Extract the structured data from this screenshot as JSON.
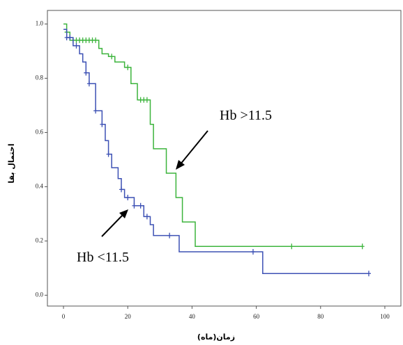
{
  "chart_data": {
    "type": "step",
    "x_label": "زمان(ماه)",
    "y_label": "احتمال بقا",
    "xlim": [
      -5,
      105
    ],
    "xticks": [
      0,
      20,
      40,
      60,
      80,
      100
    ],
    "ylim": [
      -0.04,
      1.05
    ],
    "yticks": [
      {
        "value": 0,
        "label": "0.0"
      },
      0.2,
      0.4,
      0.6,
      0.8,
      {
        "value": 1,
        "label": "1.0"
      }
    ],
    "series": [
      {
        "name": "Hb >11.5",
        "color": "#3cb43c",
        "x": [
          0,
          1,
          2,
          11,
          12,
          14,
          16,
          19,
          21,
          23,
          27,
          28,
          32,
          35,
          37,
          41,
          93
        ],
        "values": [
          1.0,
          0.97,
          0.94,
          0.91,
          0.89,
          0.88,
          0.86,
          0.84,
          0.78,
          0.72,
          0.63,
          0.54,
          0.45,
          0.36,
          0.27,
          0.18,
          0.18
        ],
        "censored_x": [
          1,
          3,
          4,
          5,
          6,
          7,
          8,
          9,
          10,
          15,
          20,
          24,
          25,
          26,
          71,
          93
        ]
      },
      {
        "name": "Hb <11.5",
        "color": "#3c50b4",
        "x": [
          0,
          1,
          3,
          5,
          6,
          7,
          8,
          10,
          12,
          13,
          14,
          15,
          17,
          18,
          19,
          22,
          25,
          27,
          28,
          36,
          62,
          95
        ],
        "values": [
          0.98,
          0.95,
          0.92,
          0.89,
          0.86,
          0.82,
          0.78,
          0.68,
          0.63,
          0.57,
          0.52,
          0.47,
          0.43,
          0.39,
          0.36,
          0.33,
          0.29,
          0.26,
          0.22,
          0.16,
          0.08,
          0.08
        ],
        "censored_x": [
          1,
          2,
          4,
          7,
          8,
          10,
          12,
          14,
          18,
          20,
          22,
          24,
          26,
          33,
          59,
          95
        ]
      }
    ]
  }
}
